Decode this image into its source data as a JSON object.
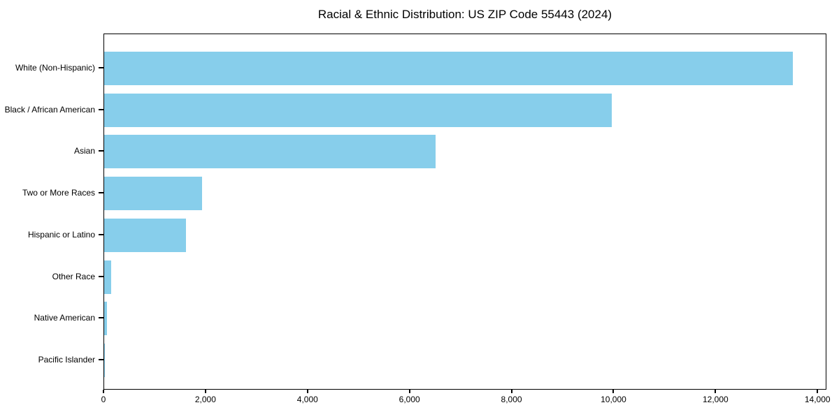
{
  "title": "Racial & Ethnic Distribution: US ZIP Code 55443 (2024)",
  "chart_data": {
    "type": "bar",
    "orientation": "horizontal",
    "title": "Racial & Ethnic Distribution: US ZIP Code 55443 (2024)",
    "categories": [
      "White (Non-Hispanic)",
      "Black / African American",
      "Asian",
      "Two or More Races",
      "Hispanic or Latino",
      "Other Race",
      "Native American",
      "Pacific Islander"
    ],
    "values": [
      13500,
      9950,
      6500,
      1925,
      1600,
      130,
      60,
      10
    ],
    "xlabel": "",
    "ylabel": "",
    "xlim": [
      0,
      14175
    ],
    "xticks": [
      0,
      2000,
      4000,
      6000,
      8000,
      10000,
      12000,
      14000
    ],
    "xtick_labels": [
      "0",
      "2,000",
      "4,000",
      "6,000",
      "8,000",
      "10,000",
      "12,000",
      "14,000"
    ],
    "bar_color": "#87CEEB",
    "text_color": "#000000",
    "grid": false,
    "legend": null
  }
}
